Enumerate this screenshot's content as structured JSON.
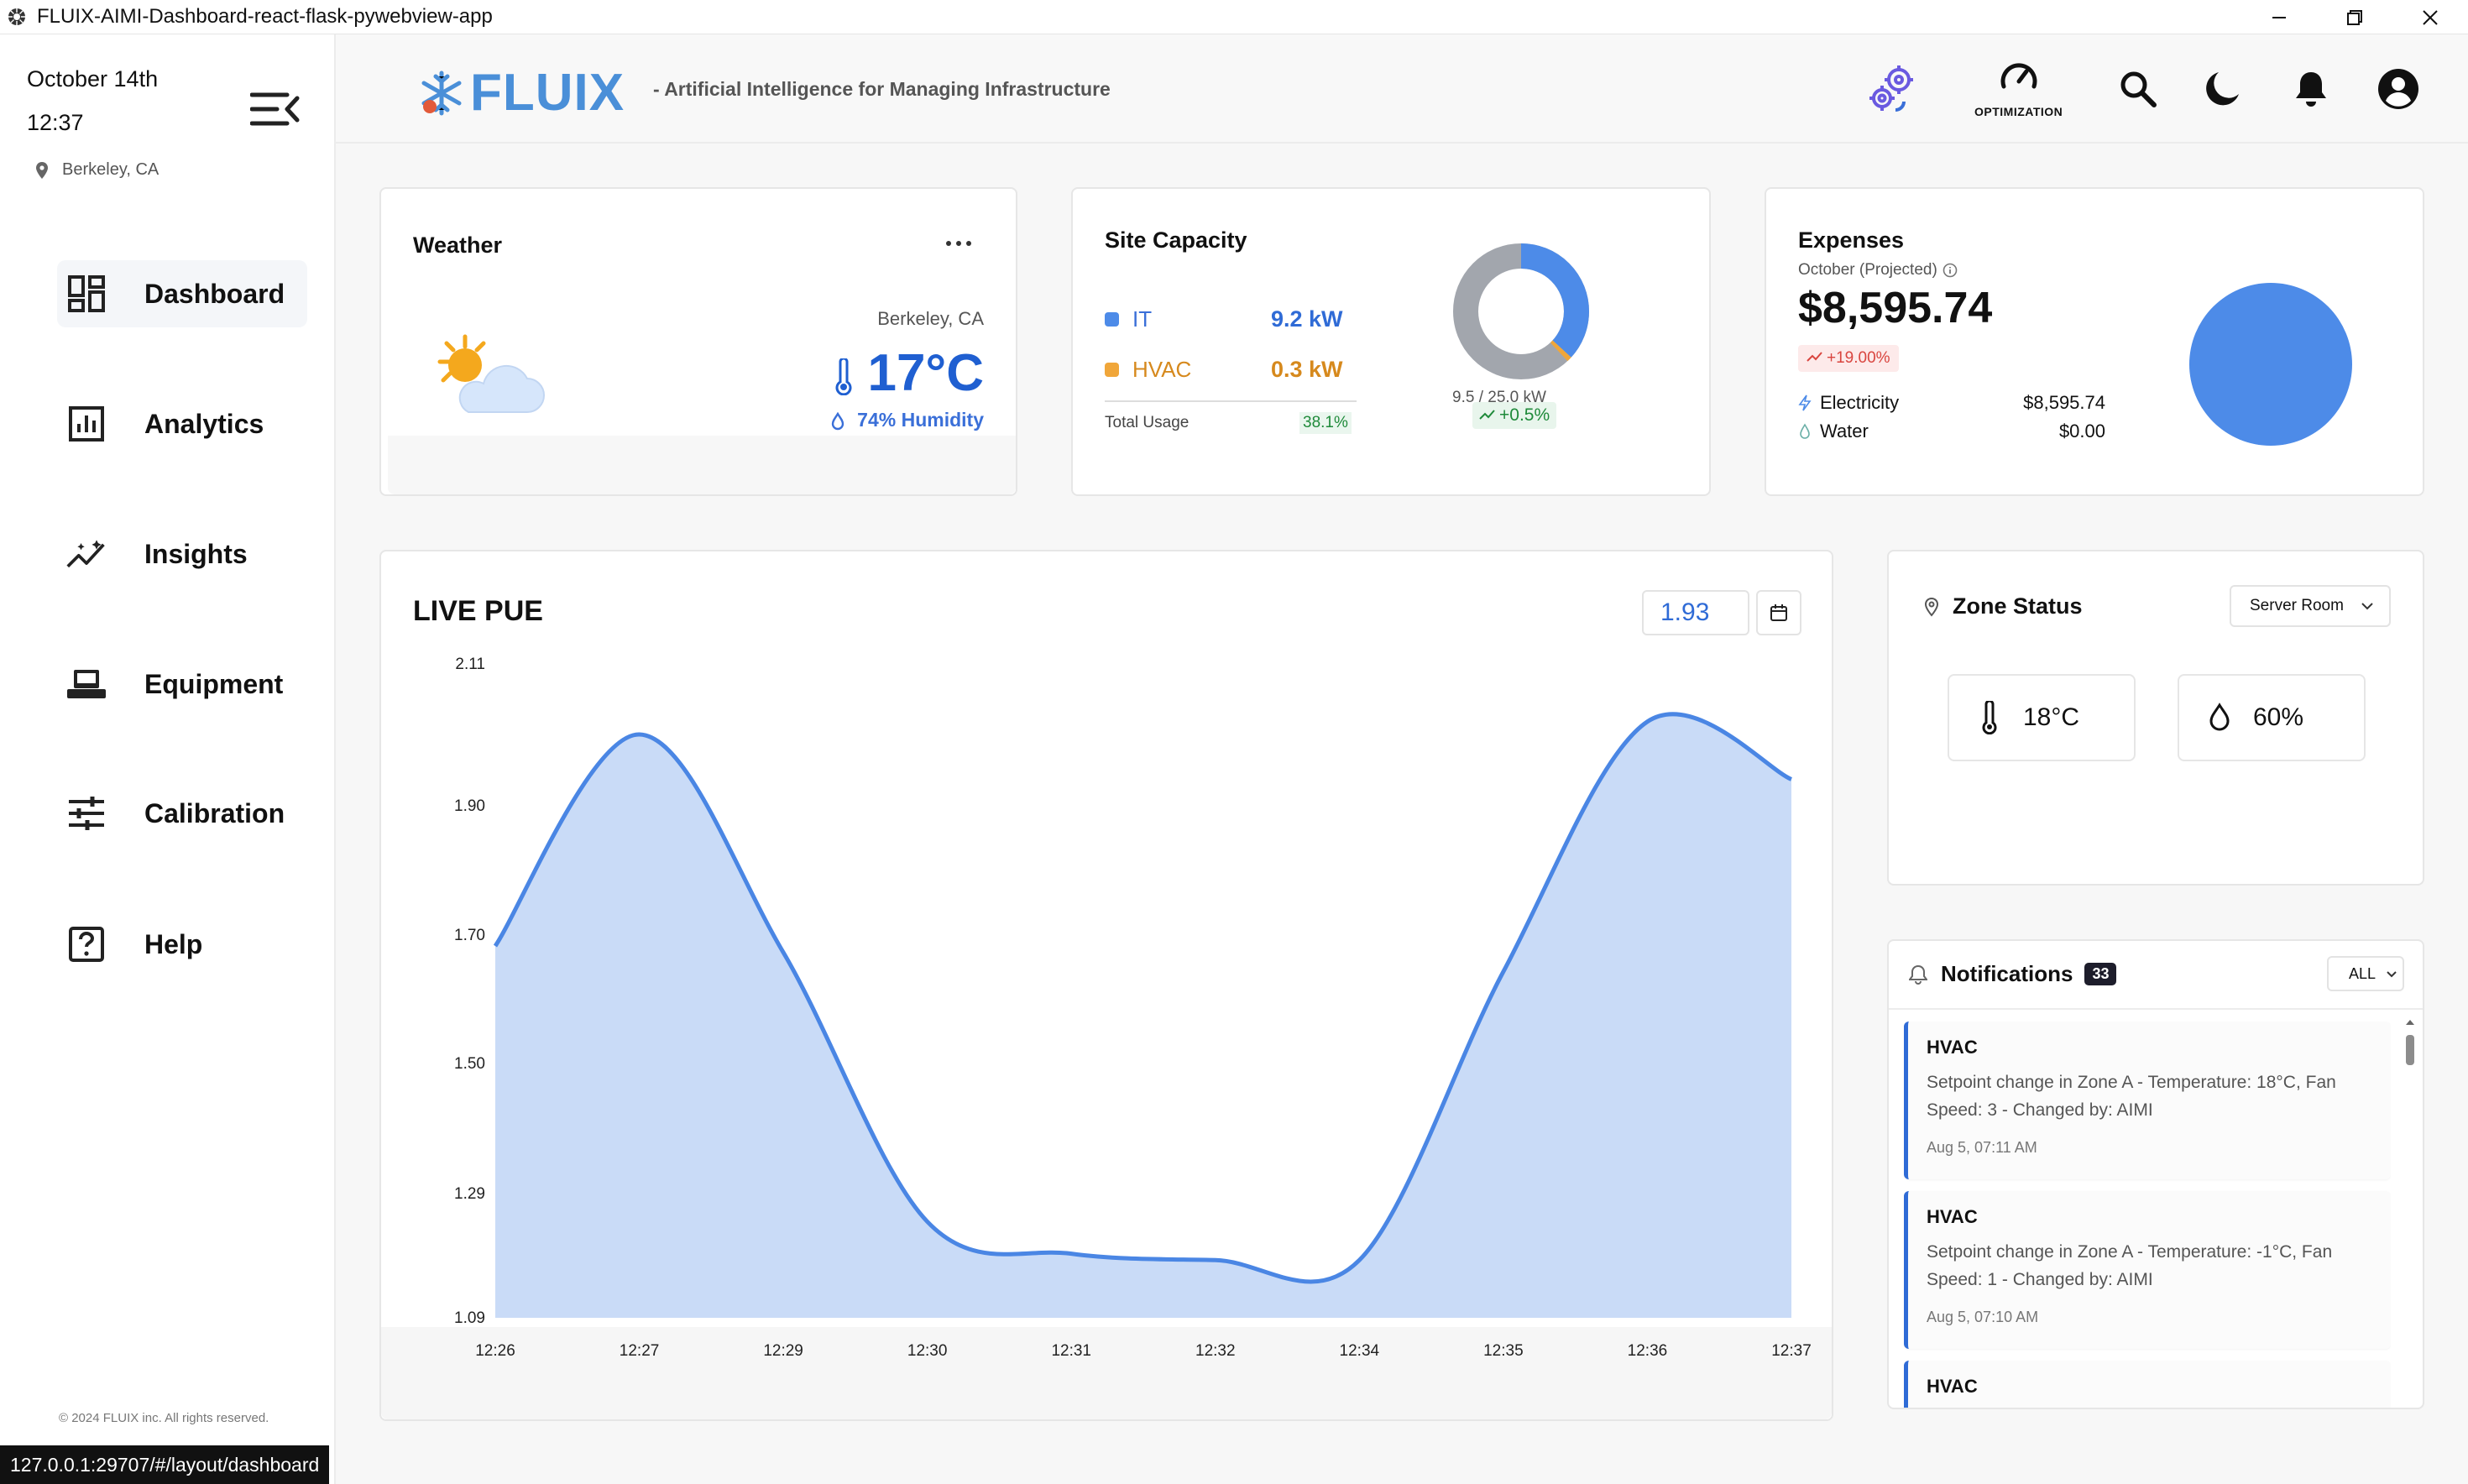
{
  "window": {
    "title": "FLUIX-AIMI-Dashboard-react-flask-pywebview-app"
  },
  "sidebar": {
    "date": "October 14th",
    "time": "12:37",
    "location": "Berkeley, CA",
    "items": [
      {
        "label": "Dashboard",
        "icon": "dashboard-icon"
      },
      {
        "label": "Analytics",
        "icon": "analytics-icon"
      },
      {
        "label": "Insights",
        "icon": "insights-icon"
      },
      {
        "label": "Equipment",
        "icon": "equipment-icon"
      },
      {
        "label": "Calibration",
        "icon": "calibration-icon"
      },
      {
        "label": "Help",
        "icon": "help-icon"
      }
    ],
    "copyright": "© 2024 FLUIX inc. All rights reserved."
  },
  "header": {
    "logo": "FLUIX",
    "tagline": "- Artificial Intelligence for Managing Infrastructure",
    "optimization_label": "OPTIMIZATION"
  },
  "weather": {
    "title": "Weather",
    "location": "Berkeley, CA",
    "temperature": "17°C",
    "humidity": "74% Humidity"
  },
  "site_capacity": {
    "title": "Site Capacity",
    "it_label": "IT",
    "it_value": "9.2 kW",
    "hvac_label": "HVAC",
    "hvac_value": "0.3 kW",
    "total_label": "Total Usage",
    "total_value": "38.1%",
    "ratio": "9.5 / 25.0 kW",
    "delta": "+0.5%",
    "colors": {
      "it": "#4d8be8",
      "hvac": "#f0a63a",
      "free": "#a2a6ad"
    }
  },
  "expenses": {
    "title": "Expenses",
    "subtitle": "October (Projected)",
    "total": "$8,595.74",
    "change": "+19.00%",
    "electricity_label": "Electricity",
    "electricity_value": "$8,595.74",
    "water_label": "Water",
    "water_value": "$0.00"
  },
  "live_pue": {
    "title": "LIVE PUE",
    "current": "1.93"
  },
  "chart_data": {
    "type": "area",
    "title": "LIVE PUE",
    "x": [
      "12:26",
      "12:27",
      "12:29",
      "12:30",
      "12:31",
      "12:32",
      "12:34",
      "12:35",
      "12:36",
      "12:37"
    ],
    "y_ticks": [
      "2.11",
      "1.90",
      "1.70",
      "1.50",
      "1.29",
      "1.09"
    ],
    "ylim": [
      1.09,
      2.11
    ],
    "series": [
      {
        "values": [
          1.67,
          2.0,
          1.66,
          1.24,
          1.19,
          1.18,
          1.18,
          1.63,
          2.02,
          1.93
        ]
      }
    ],
    "color": "#4a86e4",
    "fill": "#c9dbf7",
    "grid": false
  },
  "zone_status": {
    "title": "Zone Status",
    "zone": "Server Room",
    "temperature": "18°C",
    "humidity": "60%"
  },
  "notifications": {
    "title": "Notifications",
    "count": "33",
    "filter": "ALL",
    "items": [
      {
        "title": "HVAC",
        "body": "Setpoint change in Zone A - Temperature: 18°C, Fan Speed: 3 - Changed by: AIMI",
        "time": "Aug 5, 07:11 AM"
      },
      {
        "title": "HVAC",
        "body": "Setpoint change in Zone A - Temperature: -1°C, Fan Speed: 1 - Changed by: AIMI",
        "time": "Aug 5, 07:10 AM"
      },
      {
        "title": "HVAC",
        "body": "",
        "time": ""
      }
    ]
  },
  "status_url": "127.0.0.1:29707/#/layout/dashboard"
}
